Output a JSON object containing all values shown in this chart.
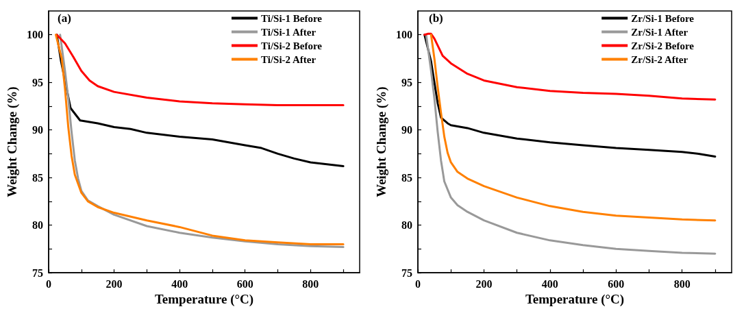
{
  "chart_data": [
    {
      "type": "line",
      "xlabel": "Temperature (°C)",
      "ylabel": "Weight Change (%)",
      "annotations": [
        "(a)"
      ],
      "xlim": [
        0,
        950
      ],
      "ylim": [
        75,
        102.5
      ],
      "xticks": [
        0,
        {
          "value": 100,
          "label": null
        },
        200,
        {
          "value": 300,
          "label": null
        },
        400,
        {
          "value": 500,
          "label": null
        },
        600,
        {
          "value": 700,
          "label": null
        },
        800,
        {
          "value": 900,
          "label": null
        }
      ],
      "yticks": [
        75,
        {
          "value": 77.5,
          "label": null
        },
        80,
        {
          "value": 82.5,
          "label": null
        },
        85,
        {
          "value": 87.5,
          "label": null
        },
        90,
        {
          "value": 92.5,
          "label": null
        },
        95,
        {
          "value": 97.5,
          "label": null
        },
        100
      ],
      "grid": false,
      "legend": "top right",
      "marker": "none",
      "line_style": "solid",
      "series": [
        {
          "name": "Ti/Si-1 Before",
          "color": "#000000",
          "x": [
            25,
            38,
            67,
            96,
            150,
            200,
            250,
            300,
            400,
            500,
            550,
            600,
            650,
            700,
            750,
            800,
            850,
            900
          ],
          "values": [
            100,
            97.2,
            92.3,
            91.0,
            90.7,
            90.3,
            90.1,
            89.7,
            89.3,
            89.0,
            88.7,
            88.4,
            88.1,
            87.5,
            87.0,
            86.6,
            86.4,
            86.2
          ]
        },
        {
          "name": "Ti/Si-1 After",
          "color": "#999999",
          "x": [
            35,
            50,
            60,
            70,
            80,
            90,
            100,
            120,
            150,
            200,
            300,
            400,
            500,
            600,
            700,
            800,
            900
          ],
          "values": [
            100,
            96.2,
            93.3,
            89.8,
            86.8,
            84.9,
            83.6,
            82.6,
            82.0,
            81.1,
            79.9,
            79.2,
            78.7,
            78.3,
            78.0,
            77.8,
            77.7
          ]
        },
        {
          "name": "Ti/Si-2 Before",
          "color": "#ff0000",
          "x": [
            25,
            50,
            75,
            100,
            125,
            150,
            200,
            300,
            400,
            500,
            600,
            700,
            900
          ],
          "values": [
            100,
            99.1,
            97.7,
            96.2,
            95.2,
            94.6,
            94.0,
            93.4,
            93.0,
            92.8,
            92.7,
            92.6,
            92.6
          ]
        },
        {
          "name": "Ti/Si-2 After",
          "color": "#ff8000",
          "x": [
            22,
            40,
            50,
            60,
            70,
            80,
            100,
            120,
            150,
            200,
            300,
            400,
            500,
            600,
            700,
            800,
            900
          ],
          "values": [
            100,
            97.5,
            94.3,
            90.3,
            87.3,
            85.3,
            83.4,
            82.5,
            81.9,
            81.3,
            80.5,
            79.8,
            78.9,
            78.4,
            78.2,
            78.0,
            78.0
          ]
        }
      ]
    },
    {
      "type": "line",
      "xlabel": "Temperature (°C)",
      "ylabel": "Weight Change (%)",
      "annotations": [
        "(b)"
      ],
      "xlim": [
        0,
        950
      ],
      "ylim": [
        75,
        102.5
      ],
      "xticks": [
        0,
        {
          "value": 100,
          "label": null
        },
        200,
        {
          "value": 300,
          "label": null
        },
        400,
        {
          "value": 500,
          "label": null
        },
        600,
        {
          "value": 700,
          "label": null
        },
        800,
        {
          "value": 900,
          "label": null
        }
      ],
      "yticks": [
        75,
        {
          "value": 77.5,
          "label": null
        },
        80,
        {
          "value": 82.5,
          "label": null
        },
        85,
        {
          "value": 87.5,
          "label": null
        },
        90,
        {
          "value": 92.5,
          "label": null
        },
        95,
        {
          "value": 97.5,
          "label": null
        },
        100
      ],
      "grid": false,
      "legend": "top right",
      "marker": "none",
      "line_style": "solid",
      "series": [
        {
          "name": "Zr/Si-1 Before",
          "color": "#000000",
          "x": [
            20,
            40,
            50,
            60,
            70,
            90,
            100,
            150,
            200,
            300,
            400,
            500,
            600,
            700,
            800,
            850,
            900
          ],
          "values": [
            100,
            97.2,
            95.0,
            92.8,
            91.3,
            90.7,
            90.5,
            90.2,
            89.7,
            89.1,
            88.7,
            88.4,
            88.1,
            87.9,
            87.7,
            87.5,
            87.2
          ]
        },
        {
          "name": "Zr/Si-1 After",
          "color": "#999999",
          "x": [
            25,
            40,
            50,
            60,
            70,
            80,
            100,
            120,
            150,
            200,
            300,
            400,
            500,
            600,
            700,
            800,
            900
          ],
          "values": [
            100,
            96.2,
            93.3,
            89.8,
            86.8,
            84.6,
            82.9,
            82.1,
            81.4,
            80.5,
            79.2,
            78.4,
            77.9,
            77.5,
            77.3,
            77.1,
            77.0
          ]
        },
        {
          "name": "Zr/Si-2 Before",
          "color": "#ff0000",
          "x": [
            20,
            30,
            40,
            50,
            75,
            100,
            150,
            200,
            300,
            400,
            500,
            600,
            700,
            800,
            900
          ],
          "values": [
            100,
            100.1,
            100.1,
            99.6,
            97.8,
            97.0,
            95.9,
            95.2,
            94.5,
            94.1,
            93.9,
            93.8,
            93.6,
            93.3,
            93.2
          ]
        },
        {
          "name": "Zr/Si-2 After",
          "color": "#ff8000",
          "x": [
            40,
            50,
            60,
            70,
            80,
            90,
            100,
            120,
            150,
            200,
            300,
            400,
            500,
            600,
            700,
            800,
            900
          ],
          "values": [
            100,
            97.5,
            94.5,
            91.8,
            89.3,
            87.6,
            86.6,
            85.6,
            84.9,
            84.1,
            82.9,
            82.0,
            81.4,
            81.0,
            80.8,
            80.6,
            80.5
          ]
        }
      ]
    }
  ]
}
